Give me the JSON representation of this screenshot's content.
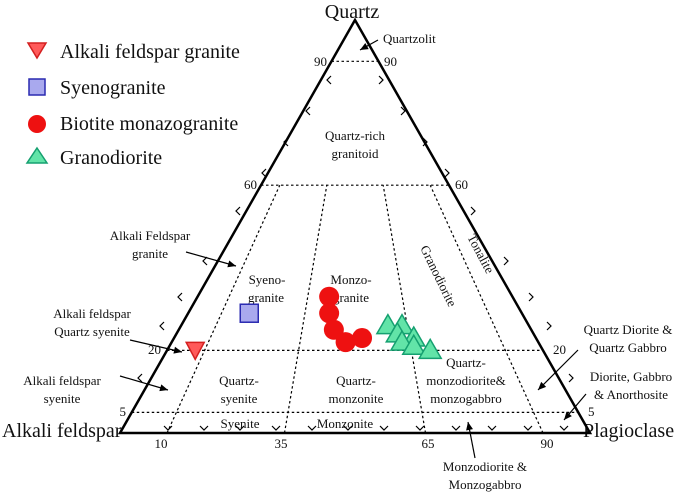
{
  "vertices": {
    "top": "Quartz",
    "left": "Alkali feldspar",
    "right": "Plagioclase"
  },
  "legend": [
    {
      "label": "Alkali feldspar granite",
      "marker": "triangle-down-icon",
      "color": "#ff5a5a",
      "stroke": "#d42020"
    },
    {
      "label": "Syenogranite",
      "marker": "square-icon",
      "color": "#a9a9ee",
      "stroke": "#2a2ab0"
    },
    {
      "label": "Biotite monazogranite",
      "marker": "circle-icon",
      "color": "#ee1111",
      "stroke": "#ee1111"
    },
    {
      "label": "Granodiorite",
      "marker": "triangle-up-icon",
      "color": "#62e4a8",
      "stroke": "#15a070"
    }
  ],
  "ticks": {
    "q90_left": "90",
    "q90_right": "90",
    "q60_left": "60",
    "q60_right": "60",
    "q20_left": "20",
    "q20_right": "20",
    "q5_left": "5",
    "q5_right": "5",
    "b10": "10",
    "b35": "35",
    "b65": "65",
    "b90": "90"
  },
  "fields": {
    "quartzolit": "Quartzolit",
    "quartz_rich": [
      "Quartz-rich",
      "granitoid"
    ],
    "alkali_feldspar_granite": [
      "Alkali Feldspar",
      "granite"
    ],
    "syenogranite": [
      "Syeno-",
      "granite"
    ],
    "monzogranite": [
      "Monzo-",
      "granite"
    ],
    "granodiorite": "Granodiorite",
    "tonalite": "Tonalite",
    "alkali_qtz_syenite": [
      "Alkali feldspar",
      "Quartz syenite"
    ],
    "alkali_syenite": [
      "Alkali feldspar",
      "syenite"
    ],
    "qtz_syenite": [
      "Quartz-",
      "syenite"
    ],
    "qtz_monzonite": [
      "Quartz-",
      "monzonite"
    ],
    "qtz_monzodiorite": [
      "Quartz-",
      "monzodiorite&",
      "monzogabbro"
    ],
    "qtz_diorite": [
      "Quartz Diorite &",
      "Quartz Gabbro"
    ],
    "diorite": [
      "Diorite, Gabbro",
      "& Anorthosite"
    ],
    "syenite": "Syenite",
    "monzonite": "Monzonite",
    "monzodiorite": [
      "Monzodiorite &",
      "Monzogabbro"
    ]
  },
  "samples": {
    "alkali_feldspar_granite": [
      {
        "Q": 20,
        "A": 74,
        "P": 6
      }
    ],
    "syenogranite": [
      {
        "Q": 29,
        "A": 58,
        "P": 13
      }
    ],
    "biotite_monazogranite": [
      {
        "Q": 33,
        "A": 39,
        "P": 28
      },
      {
        "Q": 29,
        "A": 41,
        "P": 30
      },
      {
        "Q": 25,
        "A": 42,
        "P": 33
      },
      {
        "Q": 22,
        "A": 41,
        "P": 37
      },
      {
        "Q": 23,
        "A": 37,
        "P": 40
      }
    ],
    "granodiorite": [
      {
        "Q": 26,
        "A": 30,
        "P": 44
      },
      {
        "Q": 26,
        "A": 27,
        "P": 47
      },
      {
        "Q": 24,
        "A": 29,
        "P": 47
      },
      {
        "Q": 23,
        "A": 26,
        "P": 51
      },
      {
        "Q": 22,
        "A": 29,
        "P": 49
      },
      {
        "Q": 21,
        "A": 27,
        "P": 52
      },
      {
        "Q": 20,
        "A": 24,
        "P": 56
      }
    ]
  }
}
